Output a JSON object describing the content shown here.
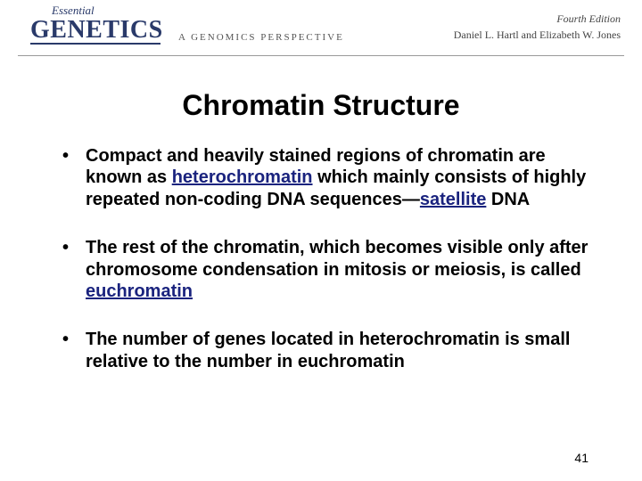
{
  "header": {
    "essential": "Essential",
    "main_title": "GENETICS",
    "subtitle": "A GENOMICS PERSPECTIVE",
    "edition": "Fourth Edition",
    "authors": "Daniel L. Hartl and Elizabeth W. Jones",
    "colors": {
      "title_color": "#2a3a6a",
      "rule_color": "#999999"
    }
  },
  "slide": {
    "title": "Chromatin Structure",
    "bullets": [
      {
        "pre": "Compact  and heavily stained regions of chromatin are known as ",
        "term1": "heterochromatin",
        "mid": " which mainly consists of highly repeated non-coding DNA sequences—",
        "term2": "satellite",
        "post": " DNA"
      },
      {
        "pre": "The rest of the chromatin, which becomes visible only after chromosome condensation in mitosis or meiosis, is called ",
        "term1": "euchromatin",
        "mid": "",
        "term2": "",
        "post": ""
      },
      {
        "pre": "The number of genes located in heterochromatin is small relative to the number in euchromatin",
        "term1": "",
        "mid": "",
        "term2": "",
        "post": ""
      }
    ],
    "page_number": "41",
    "title_fontsize": 32,
    "bullet_fontsize": 20,
    "term_color": "#1a237e",
    "background_color": "#ffffff"
  }
}
